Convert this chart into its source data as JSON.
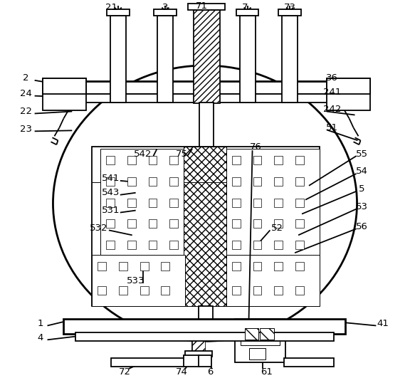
{
  "fig_width": 5.76,
  "fig_height": 5.31,
  "bg_color": "#ffffff",
  "line_color": "#000000",
  "lw_thick": 2.0,
  "lw_medium": 1.3,
  "lw_thin": 0.7
}
